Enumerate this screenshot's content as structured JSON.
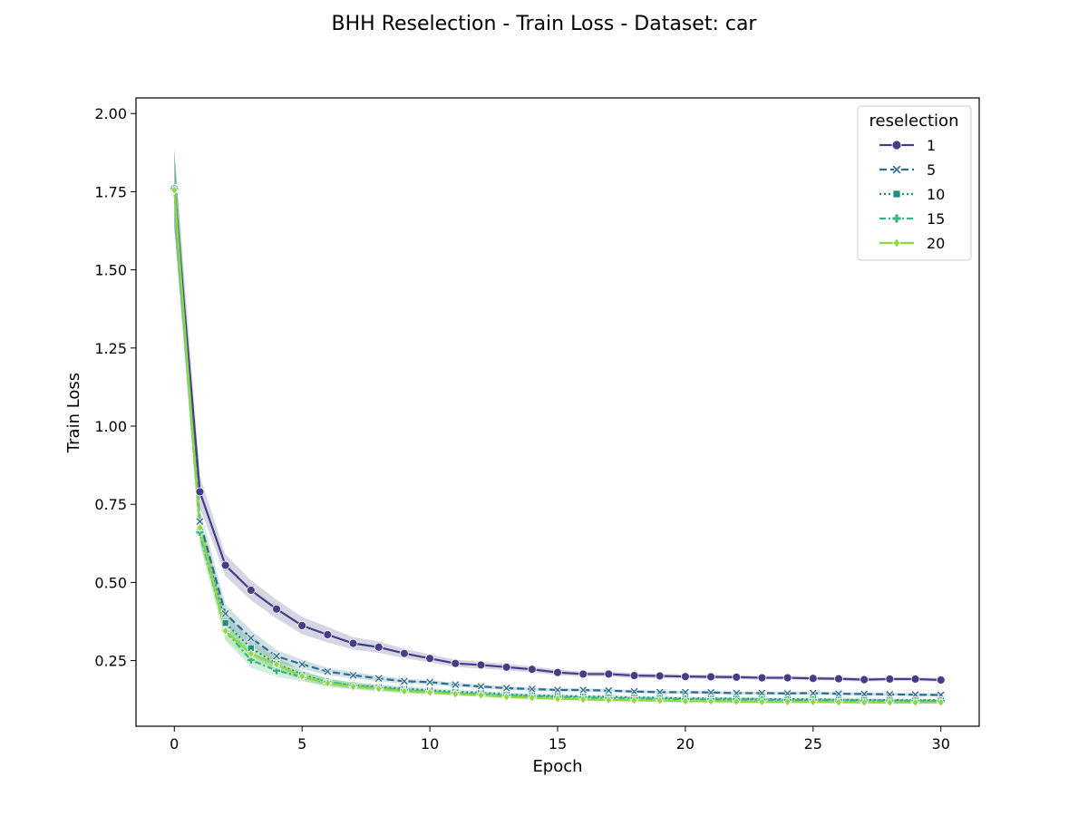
{
  "chart_data": {
    "type": "line",
    "title": "BHH Reselection - Train Loss - Dataset: car",
    "xlabel": "Epoch",
    "ylabel": "Train Loss",
    "xlim": [
      -1.5,
      31.5
    ],
    "ylim": [
      0.04,
      2.05
    ],
    "xticks": [
      0,
      5,
      10,
      15,
      20,
      25,
      30
    ],
    "yticks": [
      0.25,
      0.5,
      0.75,
      1.0,
      1.25,
      1.5,
      1.75,
      2.0
    ],
    "grid": false,
    "legend": {
      "title": "reselection",
      "placement": "top-right"
    },
    "x": [
      0,
      1,
      2,
      3,
      4,
      5,
      6,
      7,
      8,
      9,
      10,
      11,
      12,
      13,
      14,
      15,
      16,
      17,
      18,
      19,
      20,
      21,
      22,
      23,
      24,
      25,
      26,
      27,
      28,
      29,
      30
    ],
    "series": [
      {
        "name": "1",
        "color": "#433e85",
        "dash": "",
        "marker": "circle",
        "values": [
          1.76,
          0.79,
          0.555,
          0.475,
          0.415,
          0.362,
          0.333,
          0.305,
          0.293,
          0.273,
          0.257,
          0.241,
          0.236,
          0.229,
          0.222,
          0.212,
          0.207,
          0.207,
          0.202,
          0.201,
          0.199,
          0.198,
          0.197,
          0.195,
          0.195,
          0.193,
          0.192,
          0.189,
          0.191,
          0.191,
          0.188
        ],
        "band": [
          0.13,
          0.05,
          0.035,
          0.032,
          0.03,
          0.028,
          0.025,
          0.02,
          0.018,
          0.015,
          0.013,
          0.012,
          0.011,
          0.01,
          0.01,
          0.009,
          0.008,
          0.008,
          0.008,
          0.007,
          0.007,
          0.007,
          0.007,
          0.006,
          0.006,
          0.006,
          0.006,
          0.006,
          0.006,
          0.006,
          0.006
        ]
      },
      {
        "name": "5",
        "color": "#2c6d8e",
        "dash": "8,4",
        "marker": "x",
        "values": [
          1.76,
          0.695,
          0.4,
          0.322,
          0.264,
          0.238,
          0.215,
          0.203,
          0.193,
          0.184,
          0.181,
          0.173,
          0.167,
          0.162,
          0.159,
          0.156,
          0.156,
          0.154,
          0.151,
          0.149,
          0.149,
          0.148,
          0.146,
          0.146,
          0.145,
          0.146,
          0.144,
          0.143,
          0.142,
          0.141,
          0.14
        ],
        "band": [
          0.12,
          0.04,
          0.03,
          0.025,
          0.02,
          0.015,
          0.012,
          0.01,
          0.009,
          0.008,
          0.007,
          0.006,
          0.006,
          0.006,
          0.005,
          0.005,
          0.005,
          0.005,
          0.005,
          0.005,
          0.005,
          0.005,
          0.005,
          0.005,
          0.005,
          0.005,
          0.005,
          0.005,
          0.005,
          0.005,
          0.005
        ]
      },
      {
        "name": "10",
        "color": "#1f8f86",
        "dash": "2,3",
        "marker": "square",
        "values": [
          1.76,
          0.67,
          0.37,
          0.29,
          0.24,
          0.205,
          0.18,
          0.17,
          0.165,
          0.16,
          0.155,
          0.15,
          0.147,
          0.142,
          0.139,
          0.137,
          0.135,
          0.134,
          0.132,
          0.131,
          0.129,
          0.129,
          0.128,
          0.127,
          0.126,
          0.126,
          0.125,
          0.124,
          0.124,
          0.123,
          0.123
        ],
        "band": [
          0.12,
          0.04,
          0.03,
          0.025,
          0.02,
          0.015,
          0.012,
          0.01,
          0.009,
          0.008,
          0.007,
          0.006,
          0.006,
          0.006,
          0.005,
          0.005,
          0.005,
          0.005,
          0.005,
          0.005,
          0.005,
          0.005,
          0.005,
          0.005,
          0.005,
          0.005,
          0.005,
          0.005,
          0.005,
          0.005,
          0.005
        ]
      },
      {
        "name": "15",
        "color": "#35b779",
        "dash": "7,3,2,3",
        "marker": "plus",
        "values": [
          1.76,
          0.66,
          0.345,
          0.252,
          0.218,
          0.198,
          0.182,
          0.17,
          0.162,
          0.155,
          0.15,
          0.146,
          0.142,
          0.138,
          0.136,
          0.134,
          0.132,
          0.13,
          0.129,
          0.128,
          0.127,
          0.126,
          0.126,
          0.125,
          0.124,
          0.124,
          0.123,
          0.122,
          0.122,
          0.121,
          0.121
        ],
        "band": [
          0.12,
          0.04,
          0.03,
          0.025,
          0.02,
          0.015,
          0.012,
          0.01,
          0.009,
          0.008,
          0.007,
          0.006,
          0.006,
          0.006,
          0.005,
          0.005,
          0.005,
          0.005,
          0.005,
          0.005,
          0.005,
          0.005,
          0.005,
          0.005,
          0.005,
          0.005,
          0.005,
          0.005,
          0.005,
          0.005,
          0.005
        ]
      },
      {
        "name": "20",
        "color": "#8fd744",
        "dash": "",
        "marker": "diamond",
        "values": [
          1.755,
          0.675,
          0.345,
          0.272,
          0.238,
          0.2,
          0.178,
          0.167,
          0.16,
          0.152,
          0.148,
          0.143,
          0.139,
          0.134,
          0.131,
          0.128,
          0.126,
          0.124,
          0.123,
          0.122,
          0.12,
          0.12,
          0.119,
          0.118,
          0.118,
          0.118,
          0.117,
          0.116,
          0.116,
          0.116,
          0.116
        ],
        "band": [
          0.12,
          0.04,
          0.03,
          0.025,
          0.02,
          0.015,
          0.012,
          0.01,
          0.009,
          0.008,
          0.007,
          0.006,
          0.006,
          0.006,
          0.005,
          0.005,
          0.005,
          0.005,
          0.005,
          0.005,
          0.005,
          0.005,
          0.005,
          0.005,
          0.005,
          0.005,
          0.005,
          0.005,
          0.005,
          0.005,
          0.005
        ]
      }
    ]
  }
}
